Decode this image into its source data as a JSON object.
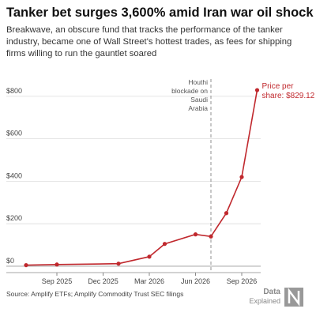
{
  "chart_data": {
    "type": "line",
    "title": "Tanker bet surges 3,600% amid Iran war oil shock",
    "subtitle": [
      "Breakwave, an obscure fund that tracks the performance of the tanker",
      "industry, became one of Wall Street's hottest trades, as fees for shipping",
      "firms willing to run the gauntlet soared"
    ],
    "source": "Source: Amplify ETFs; Amplify Commodity Trust SEC filings",
    "brand": [
      "Data",
      "Explained"
    ],
    "x": [
      "Jul 2025",
      "Sep 2025",
      "Jan 2026",
      "Mar 2026",
      "Apr 2026",
      "Jun 2026",
      "Jul 2026",
      "Aug 2026",
      "Sep 2026",
      "Oct 2026"
    ],
    "series": [
      {
        "name": "Price per share",
        "color": "#c0282d",
        "values": [
          5,
          8,
          12,
          45,
          105,
          150,
          140,
          250,
          420,
          829.12
        ]
      }
    ],
    "end_label": [
      "Price per",
      "share: $829.12"
    ],
    "event": {
      "x": "Jul 2026",
      "text": [
        "Houthi",
        "blockade on",
        "Saudi",
        "Arabia"
      ]
    },
    "xlim": [
      "Jun 2025",
      "Oct 2026"
    ],
    "xticks": [
      "Sep 2025",
      "Dec 2025",
      "Mar 2026",
      "Jun 2026",
      "Sep 2026"
    ],
    "ylim": [
      -30,
      900
    ],
    "yticks": [
      {
        "value": 0,
        "label": "$0"
      },
      {
        "value": 200,
        "label": "$200"
      },
      {
        "value": 400,
        "label": "$400"
      },
      {
        "value": 600,
        "label": "$600"
      },
      {
        "value": 800,
        "label": "$800"
      }
    ],
    "grid": true
  }
}
